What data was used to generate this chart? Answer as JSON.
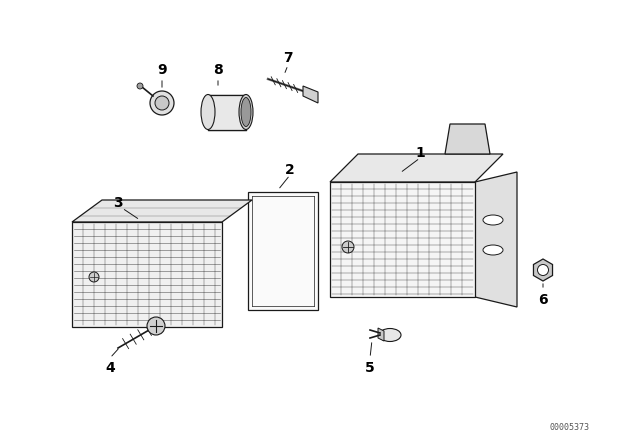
{
  "bg_color": "#ffffff",
  "line_color": "#1a1a1a",
  "label_color": "#000000",
  "watermark": "00005373",
  "figsize": [
    6.4,
    4.48
  ],
  "dpi": 100
}
